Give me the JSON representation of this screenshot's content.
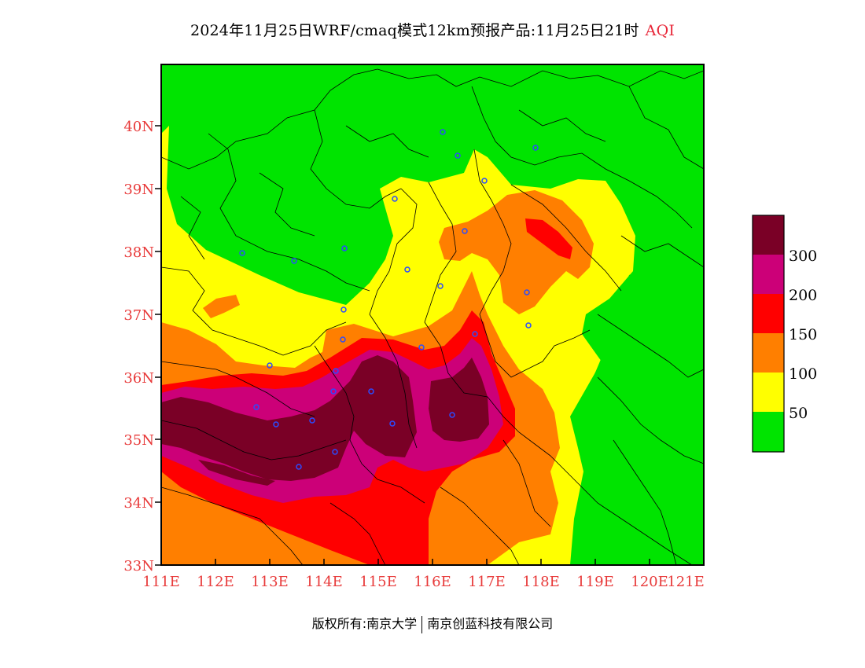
{
  "title": {
    "main": "2024年11月25日WRF/cmaq模式12km预报产品:11月25日21时",
    "variable": "AQI"
  },
  "axes": {
    "x_ticks": [
      "111E",
      "112E",
      "113E",
      "114E",
      "115E",
      "116E",
      "117E",
      "118E",
      "119E",
      "120E",
      "121E"
    ],
    "y_ticks": [
      "33N",
      "34N",
      "35N",
      "36N",
      "37N",
      "38N",
      "39N",
      "40N"
    ]
  },
  "legend": {
    "labels": [
      "300",
      "200",
      "150",
      "100",
      "50"
    ],
    "colors": [
      "#7a0026",
      "#cc0078",
      "#ff0000",
      "#ff7f00",
      "#ffff00",
      "#00e400"
    ]
  },
  "footer": {
    "left": "版权所有:南京大学",
    "right": "南京创蓝科技有限公司"
  },
  "colors": {
    "axis_label": "#e83a3a",
    "border": "#000000"
  }
}
